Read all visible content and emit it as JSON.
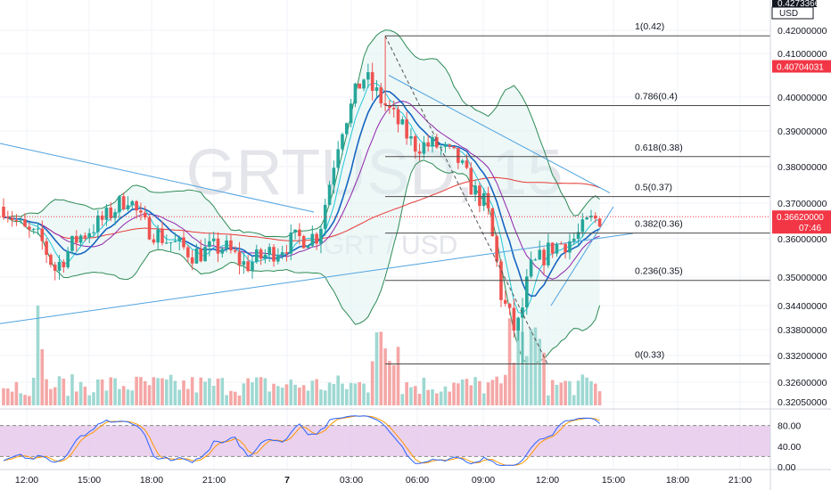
{
  "chart_data": {
    "type": "candlestick",
    "watermark": {
      "symbol": "GRTUSD, 15",
      "pair": "GRT / USD"
    },
    "currency": "USD",
    "top_price_tag": "0.42733664",
    "current_price": {
      "value": "0.36620000",
      "countdown": "07:46",
      "color": "#f23645"
    },
    "alert_price": {
      "value": "0.40704031",
      "color": "#f23645"
    },
    "yticks": [
      "0.42000000",
      "0.41000000",
      "0.40000000",
      "0.39000000",
      "0.38000000",
      "0.37000000",
      "0.36000000",
      "0.35000000",
      "0.34400000",
      "0.33800000",
      "0.33200000",
      "0.32600000",
      "0.32050000"
    ],
    "ytick_values": [
      0.42,
      0.41,
      0.4,
      0.39,
      0.38,
      0.37,
      0.36,
      0.35,
      0.344,
      0.338,
      0.332,
      0.326,
      0.3205
    ],
    "xticks": [
      "12:00",
      "15:00",
      "18:00",
      "21:00",
      "7",
      "03:00",
      "06:00",
      "09:00",
      "12:00",
      "15:00",
      "18:00",
      "21:00"
    ],
    "fibonacci": [
      {
        "label": "1(0.42)",
        "value": 0.4176
      },
      {
        "label": "0.786(0.4)",
        "value": 0.3975
      },
      {
        "label": "0.618(0.38)",
        "value": 0.3828
      },
      {
        "label": "0.5(0.37)",
        "value": 0.3718
      },
      {
        "label": "0.382(0.36)",
        "value": 0.3616
      },
      {
        "label": "0.236(0.35)",
        "value": 0.3493
      },
      {
        "label": "0(0.33)",
        "value": 0.3301
      }
    ],
    "rsi": {
      "yticks": [
        "80.00",
        "40.00",
        "0.00"
      ],
      "ytick_values": [
        80,
        40,
        0
      ],
      "upper": 80,
      "lower": 20
    },
    "colors": {
      "up": "#26a69a",
      "down": "#ef5350",
      "bb": "#2e8b57",
      "bb_fill": "#e0f2f1",
      "ma_fast": "#1565c0",
      "ma_slow": "#8e24aa",
      "ma_long": "#e53935",
      "band": "#26c6da",
      "rsi_fill": "#e1bee7",
      "rsi_k": "#2962ff",
      "rsi_d": "#ff9800",
      "trend": "#4fa3e0"
    }
  }
}
